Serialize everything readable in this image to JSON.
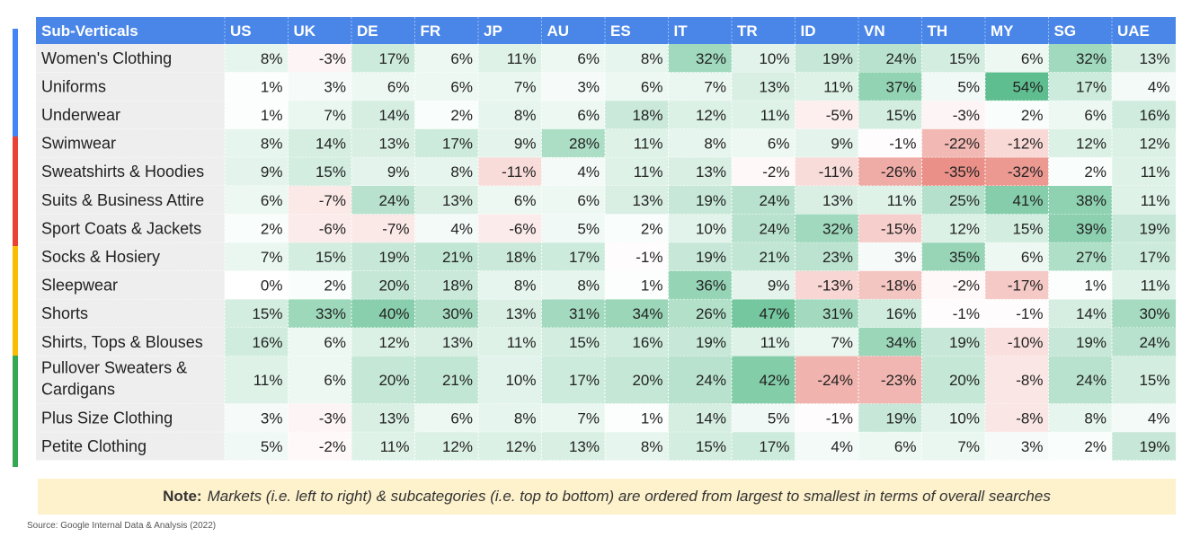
{
  "chart_data": {
    "type": "heatmap",
    "row_header": "Sub-Verticals",
    "columns": [
      "US",
      "UK",
      "DE",
      "FR",
      "JP",
      "AU",
      "ES",
      "IT",
      "TR",
      "ID",
      "VN",
      "TH",
      "MY",
      "SG",
      "UAE"
    ],
    "rows": [
      {
        "label": "Women's Clothing",
        "values": [
          8,
          -3,
          17,
          6,
          11,
          6,
          8,
          32,
          10,
          19,
          24,
          15,
          6,
          32,
          13
        ]
      },
      {
        "label": "Uniforms",
        "values": [
          1,
          3,
          6,
          6,
          7,
          3,
          6,
          7,
          13,
          11,
          37,
          5,
          54,
          17,
          4
        ]
      },
      {
        "label": "Underwear",
        "values": [
          1,
          7,
          14,
          2,
          8,
          6,
          18,
          12,
          11,
          -5,
          15,
          -3,
          2,
          6,
          16
        ]
      },
      {
        "label": "Swimwear",
        "values": [
          8,
          14,
          13,
          17,
          9,
          28,
          11,
          8,
          6,
          9,
          -1,
          -22,
          -12,
          12,
          12
        ]
      },
      {
        "label": "Sweatshirts & Hoodies",
        "values": [
          9,
          15,
          9,
          8,
          -11,
          4,
          11,
          13,
          -2,
          -11,
          -26,
          -35,
          -32,
          2,
          11
        ]
      },
      {
        "label": "Suits & Business Attire",
        "values": [
          6,
          -7,
          24,
          13,
          6,
          6,
          13,
          19,
          24,
          13,
          11,
          25,
          41,
          38,
          11
        ]
      },
      {
        "label": "Sport Coats & Jackets",
        "values": [
          2,
          -6,
          -7,
          4,
          -6,
          5,
          2,
          10,
          24,
          32,
          -15,
          12,
          15,
          39,
          19
        ]
      },
      {
        "label": "Socks & Hosiery",
        "values": [
          7,
          15,
          19,
          21,
          18,
          17,
          -1,
          19,
          21,
          23,
          3,
          35,
          6,
          27,
          17
        ]
      },
      {
        "label": "Sleepwear",
        "values": [
          0,
          2,
          20,
          18,
          8,
          8,
          1,
          36,
          9,
          -13,
          -18,
          -2,
          -17,
          1,
          11
        ]
      },
      {
        "label": "Shorts",
        "values": [
          15,
          33,
          40,
          30,
          13,
          31,
          34,
          26,
          47,
          31,
          16,
          -1,
          -1,
          14,
          30
        ]
      },
      {
        "label": "Shirts, Tops & Blouses",
        "values": [
          16,
          6,
          12,
          13,
          11,
          15,
          16,
          19,
          11,
          7,
          34,
          19,
          -10,
          19,
          24
        ]
      },
      {
        "label": "Pullover Sweaters & Cardigans",
        "lines": [
          "Pullover Sweaters &",
          "Cardigans"
        ],
        "values": [
          11,
          6,
          20,
          21,
          10,
          17,
          20,
          24,
          42,
          -24,
          -23,
          20,
          -8,
          24,
          15
        ]
      },
      {
        "label": "Plus Size Clothing",
        "values": [
          3,
          -3,
          13,
          6,
          8,
          7,
          1,
          14,
          5,
          -1,
          19,
          10,
          -8,
          8,
          4
        ]
      },
      {
        "label": "Petite Clothing",
        "values": [
          5,
          -2,
          11,
          12,
          12,
          13,
          8,
          15,
          17,
          4,
          6,
          7,
          3,
          2,
          19
        ]
      }
    ],
    "unit": "%",
    "colors": {
      "header_bg": "#4a86e8",
      "header_text": "#ffffff",
      "label_bg": "#eeeeee",
      "positive": "#57bb8a",
      "negative": "#e67c73",
      "neutral": "#ffffff"
    }
  },
  "note": {
    "label": "Note:",
    "text": "Markets (i.e. left to right) & subcategories (i.e. top to bottom) are ordered from largest to smallest in terms of overall searches"
  },
  "source": "Source: Google Internal Data & Analysis (2022)"
}
